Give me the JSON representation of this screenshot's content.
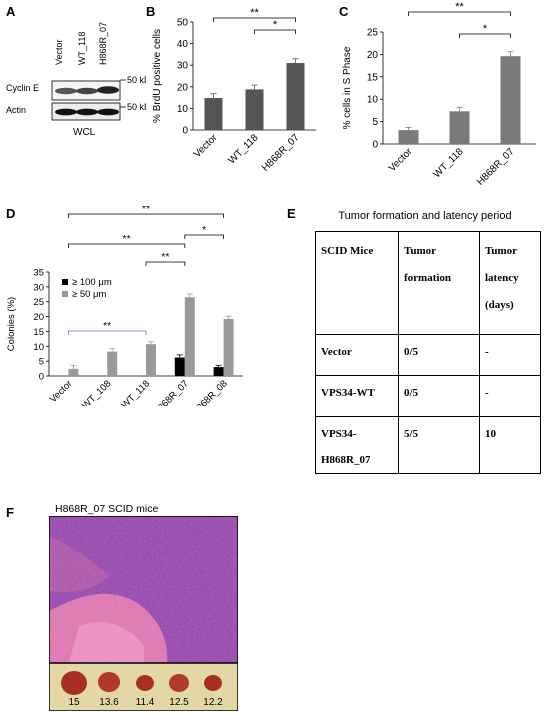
{
  "panels": {
    "A": {
      "label": "A",
      "lanes": [
        "Vector",
        "WT_118",
        "H868R_07"
      ],
      "rows": [
        {
          "label": "Cyclin E",
          "marker": "50 kDa"
        },
        {
          "label": "Actin",
          "marker": "50 kDa"
        }
      ],
      "footer": "WCL"
    },
    "B": {
      "label": "B"
    },
    "C": {
      "label": "C"
    },
    "D": {
      "label": "D"
    },
    "E": {
      "label": "E"
    },
    "F": {
      "label": "F",
      "title": "H868R_07 SCID mice",
      "tumor_values": [
        "15",
        "13.6",
        "11.4",
        "12.5",
        "12.2"
      ]
    }
  },
  "chart_data": [
    {
      "type": "bar",
      "panel": "B",
      "categories": [
        "Vector",
        "WT_118",
        "H868R_07"
      ],
      "values": [
        14.8,
        18.8,
        31
      ],
      "errors": [
        2,
        2,
        2
      ],
      "ylabel": "% BrdU positive cells",
      "ylim": [
        0,
        50
      ],
      "yticks": [
        "0",
        "10",
        "20",
        "30",
        "40",
        "50"
      ],
      "significance": [
        {
          "from": 0,
          "to": 2,
          "label": "**"
        },
        {
          "from": 1,
          "to": 2,
          "label": "*"
        }
      ],
      "color": "#555555"
    },
    {
      "type": "bar",
      "panel": "C",
      "categories": [
        "Vector",
        "WT_118",
        "H868R_07"
      ],
      "values": [
        3.1,
        7.3,
        19.6
      ],
      "errors": [
        0.6,
        0.9,
        1.0
      ],
      "ylabel": "% cells in S Phase",
      "ylim": [
        0,
        25
      ],
      "yticks": [
        "0",
        "5",
        "10",
        "15",
        "20",
        "25"
      ],
      "significance": [
        {
          "from": 0,
          "to": 2,
          "label": "**"
        },
        {
          "from": 1,
          "to": 2,
          "label": "*"
        }
      ],
      "color": "#7a7a7a"
    },
    {
      "type": "bar",
      "panel": "D",
      "categories": [
        "Vector",
        "WT_108",
        "WT_118",
        "H868R_07",
        "H868R_08"
      ],
      "series": [
        {
          "name": "≥ 100 μm",
          "values": [
            0,
            0,
            0,
            6.2,
            3
          ],
          "errors": [
            0,
            0,
            0,
            0.9,
            0.6
          ],
          "color": "#000000"
        },
        {
          "name": "≥ 50 μm",
          "values": [
            2.4,
            8.2,
            10.7,
            26.5,
            19.2
          ],
          "errors": [
            1.2,
            1.0,
            0.8,
            1.1,
            0.9
          ],
          "color": "#999999"
        }
      ],
      "ylabel": "Colonies (%)",
      "ylim": [
        0,
        35
      ],
      "yticks": [
        "0",
        "5",
        "10",
        "15",
        "20",
        "25",
        "30",
        "35"
      ],
      "legend": "top-left",
      "significance": [
        {
          "from": 0,
          "to": 2,
          "label": "**"
        },
        {
          "from": 2,
          "to": 3,
          "label": "**"
        },
        {
          "from": 3,
          "to": 4,
          "label": "*"
        },
        {
          "from": 0,
          "to": 3,
          "label": "**"
        },
        {
          "from": 0,
          "to": 4,
          "label": "**"
        }
      ]
    },
    {
      "type": "table",
      "panel": "E",
      "title": "Tumor formation and latency period",
      "header": [
        [
          "SCID Mice"
        ],
        [
          "Tumor",
          "formation"
        ],
        [
          "Tumor",
          "latency",
          "(days)"
        ]
      ],
      "rows": [
        [
          [
            "Vector"
          ],
          [
            "0/5"
          ],
          [
            "-"
          ]
        ],
        [
          [
            "VPS34-WT"
          ],
          [
            "0/5"
          ],
          [
            "-"
          ]
        ],
        [
          [
            "VPS34-",
            "H868R_07"
          ],
          [
            "5/5"
          ],
          [
            "10"
          ]
        ]
      ]
    }
  ]
}
